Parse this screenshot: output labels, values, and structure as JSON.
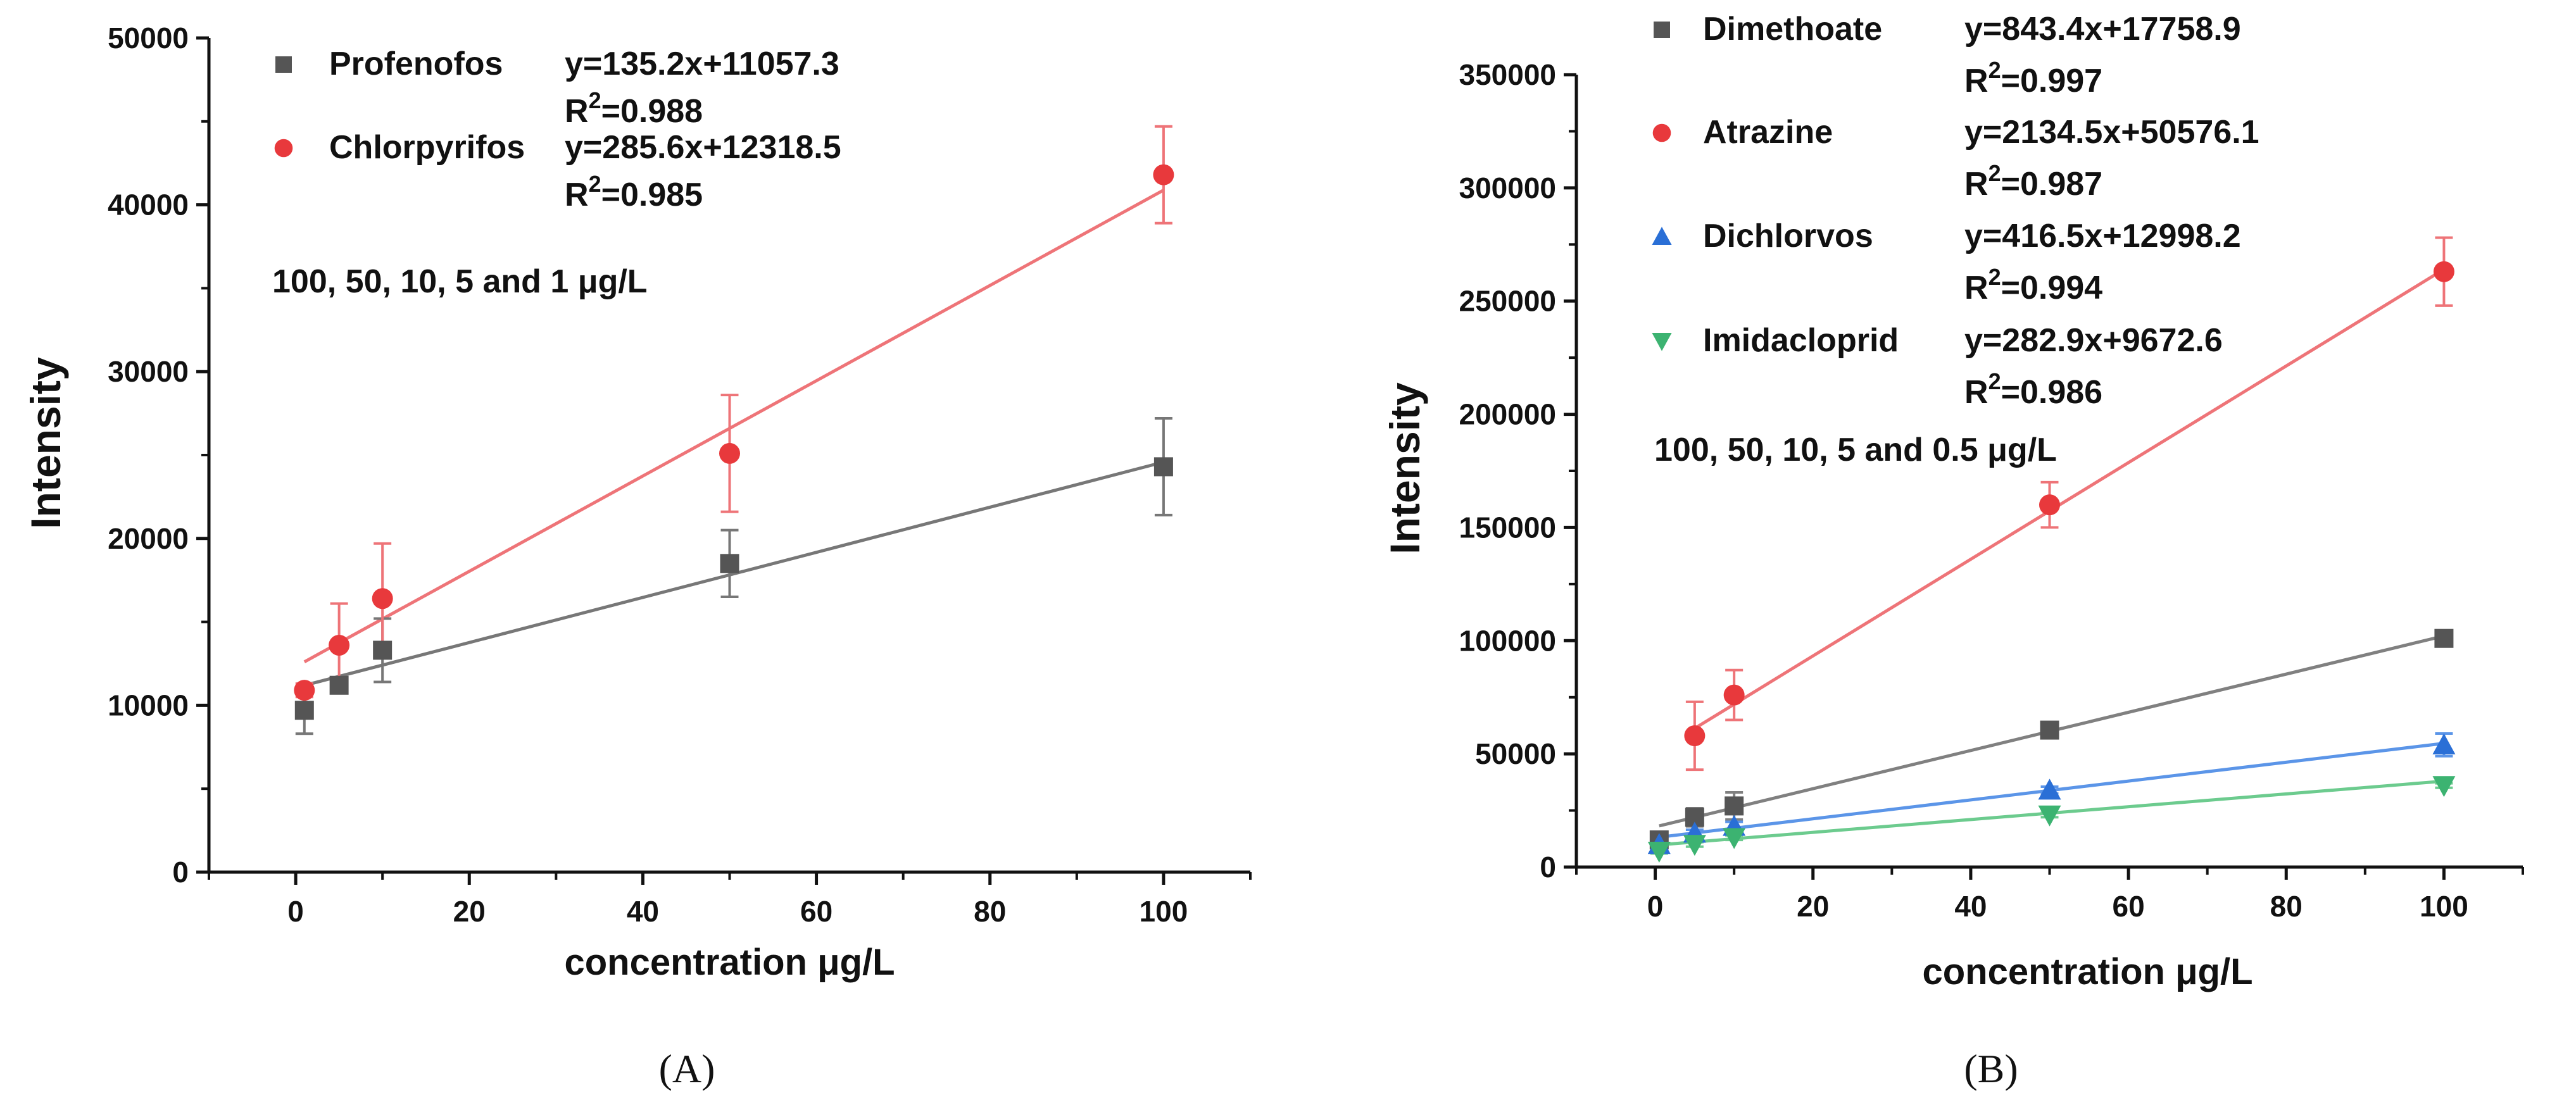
{
  "chart_data": [
    {
      "type": "scatter",
      "panel_label": "(A)",
      "xlabel": "concentration μg/L",
      "ylabel": "Intensity",
      "xlim": [
        -10,
        110
      ],
      "ylim": [
        0,
        50000
      ],
      "xticks": [
        "0",
        "20",
        "40",
        "60",
        "80",
        "100"
      ],
      "yticks": [
        "0",
        "10000",
        "20000",
        "30000",
        "40000",
        "50000"
      ],
      "note": "100, 50, 10, 5 and 1 μg/L",
      "legend_position": "top-left",
      "series": [
        {
          "name": "Profenofos",
          "equation": "y=135.2x+11057.3",
          "r2_base": "R",
          "r2_sup": "2",
          "r2_value": "=0.988",
          "marker": "square",
          "color": "#555555",
          "line_color": "#777777",
          "slope": 135.2,
          "intercept": 11057.3,
          "x": [
            1,
            5,
            10,
            50,
            100
          ],
          "values": [
            9700,
            11200,
            13300,
            18500,
            24300
          ],
          "errors": [
            1400,
            400,
            1900,
            2000,
            2900
          ]
        },
        {
          "name": "Chlorpyrifos",
          "equation": "y=285.6x+12318.5",
          "r2_base": "R",
          "r2_sup": "2",
          "r2_value": "=0.985",
          "marker": "circle",
          "color": "#e8393c",
          "line_color": "#ee7478",
          "slope": 285.6,
          "intercept": 12318.5,
          "x": [
            1,
            5,
            10,
            50,
            100
          ],
          "values": [
            10900,
            13600,
            16400,
            25100,
            41800
          ],
          "errors": [
            400,
            2500,
            3300,
            3500,
            2900
          ]
        }
      ]
    },
    {
      "type": "scatter",
      "panel_label": "(B)",
      "xlabel": "concentration μg/L",
      "ylabel": "Intensity",
      "xlim": [
        -10,
        110
      ],
      "ylim": [
        0,
        350000
      ],
      "xticks": [
        "0",
        "20",
        "40",
        "60",
        "80",
        "100"
      ],
      "yticks": [
        "0",
        "50000",
        "100000",
        "150000",
        "200000",
        "250000",
        "300000",
        "350000"
      ],
      "note": "100, 50, 10, 5 and 0.5 μg/L",
      "legend_position": "top-left",
      "series": [
        {
          "name": "Dimethoate",
          "equation": "y=843.4x+17758.9",
          "r2_base": "R",
          "r2_sup": "2",
          "r2_value": "=0.997",
          "marker": "square",
          "color": "#555555",
          "line_color": "#808080",
          "slope": 843.4,
          "intercept": 17758.9,
          "x": [
            0.5,
            5,
            10,
            50,
            100
          ],
          "values": [
            12000,
            22000,
            27000,
            60500,
            101000
          ],
          "errors": [
            2000,
            4000,
            6000,
            2000,
            2000
          ]
        },
        {
          "name": "Atrazine",
          "equation": "y=2134.5x+50576.1",
          "r2_base": "R",
          "r2_sup": "2",
          "r2_value": "=0.987",
          "marker": "circle",
          "color": "#e8393c",
          "line_color": "#ee7478",
          "slope": 2134.5,
          "intercept": 50576.1,
          "x": [
            5,
            10,
            50,
            100
          ],
          "values": [
            58000,
            76000,
            160000,
            263000
          ],
          "errors": [
            15000,
            11000,
            10000,
            15000
          ]
        },
        {
          "name": "Dichlorvos",
          "equation": "y=416.5x+12998.2",
          "r2_base": "R",
          "r2_sup": "2",
          "r2_value": "=0.994",
          "marker": "triangle-up",
          "color": "#2a6fd6",
          "line_color": "#5b95e8",
          "slope": 416.5,
          "intercept": 12998.2,
          "x": [
            0.5,
            5,
            10,
            50,
            100
          ],
          "values": [
            10000,
            15000,
            18000,
            34000,
            54000
          ],
          "errors": [
            1000,
            1500,
            2000,
            1500,
            5000
          ]
        },
        {
          "name": "Imidacloprid",
          "equation": "y=282.9x+9672.6",
          "r2_base": "R",
          "r2_sup": "2",
          "r2_value": "=0.986",
          "marker": "triangle-down",
          "color": "#3cb371",
          "line_color": "#6ccb8e",
          "slope": 282.9,
          "intercept": 9672.6,
          "x": [
            0.5,
            5,
            10,
            50,
            100
          ],
          "values": [
            7000,
            10000,
            13000,
            23000,
            36000
          ],
          "errors": [
            1000,
            1000,
            1000,
            1000,
            1000
          ]
        }
      ]
    }
  ]
}
